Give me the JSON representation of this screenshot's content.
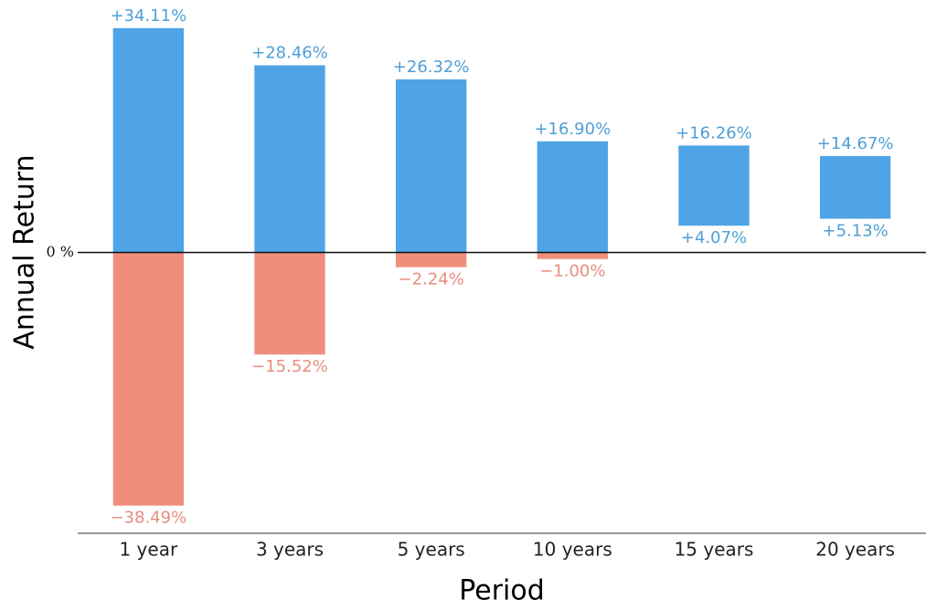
{
  "chart_data": {
    "type": "bar",
    "x_label": "Period",
    "y_label": "Annual Return",
    "categories": [
      "1 year",
      "3 years",
      "5 years",
      "10 years",
      "15 years",
      "20 years"
    ],
    "series": [
      {
        "color": "#4ea4e6",
        "label_color": "#4f9fd6",
        "values": [
          34.11,
          28.46,
          26.32,
          16.9,
          16.26,
          14.67
        ],
        "value_labels": [
          "+34.11%",
          "+28.46%",
          "+26.32%",
          "+16.90%",
          "+16.26%",
          "+14.67%"
        ]
      },
      {
        "color": "#f08e7e",
        "label_color": "#e58e7e",
        "values": [
          -38.49,
          -15.52,
          -2.24,
          -1.0,
          4.07,
          5.13
        ],
        "value_labels": [
          "−38.49%",
          "−15.52%",
          "−2.24%",
          "−1.00%",
          "+4.07%",
          "+5.13%"
        ]
      }
    ],
    "ylim": [
      -42.7,
      37
    ],
    "yticks": [
      {
        "value": 0,
        "label": "0 %"
      }
    ]
  }
}
